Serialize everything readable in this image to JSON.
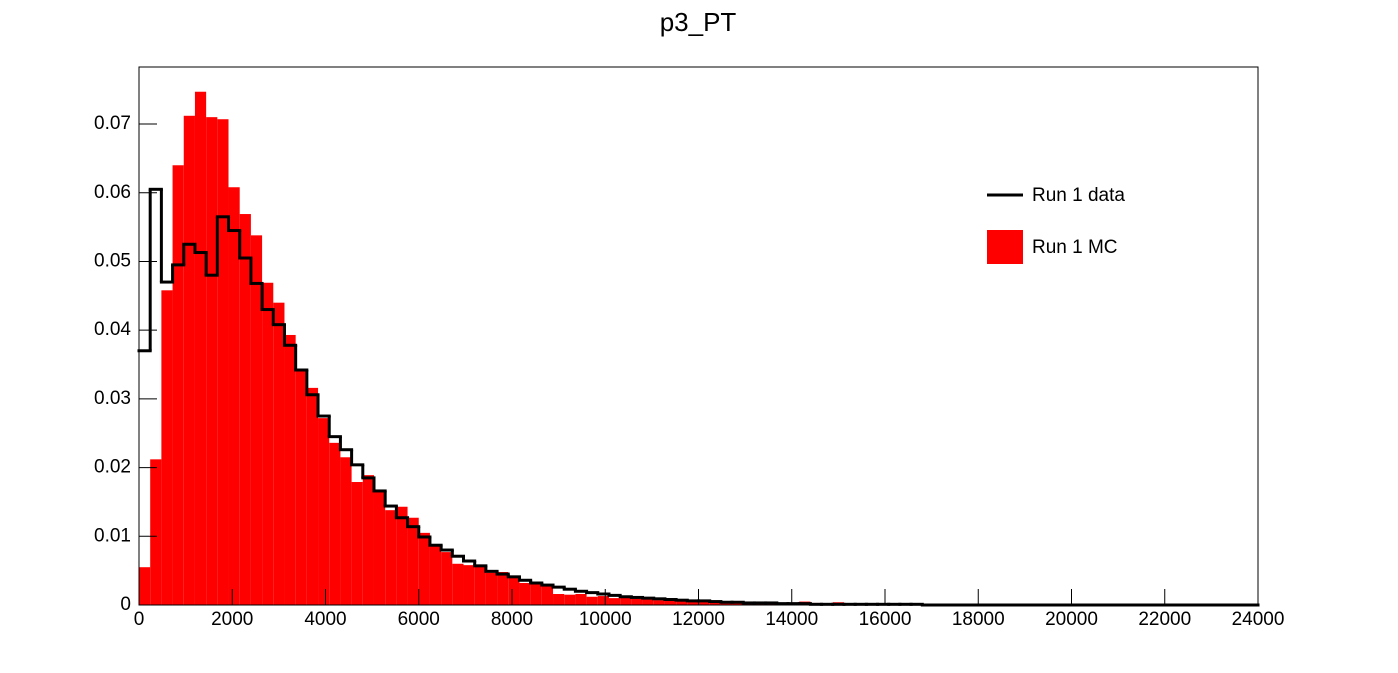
{
  "chart_data": {
    "type": "histogram",
    "title": "p3_PT",
    "bins": [
      0,
      240,
      480,
      720,
      960,
      1200,
      1440,
      1680,
      1920,
      2160,
      2400,
      2640,
      2880,
      3120,
      3360,
      3600,
      3840,
      4080,
      4320,
      4560,
      4800,
      5040,
      5280,
      5520,
      5760,
      6000,
      6240,
      6480,
      6720,
      6960,
      7200,
      7440,
      7680,
      7920,
      8160,
      8400,
      8640,
      8880,
      9120,
      9360,
      9600,
      9840,
      10080,
      10320,
      10560,
      10800,
      11040,
      11280,
      11520,
      11760,
      12000,
      12240,
      12480,
      12720,
      12960,
      13200,
      13440,
      13680,
      13920,
      14160,
      14400,
      14640,
      14880,
      15120,
      15360,
      15600,
      15840,
      16080,
      16320,
      16560,
      16800,
      17040,
      17280,
      17520,
      17760,
      18000,
      18240,
      18480,
      18720,
      18960,
      19200,
      19440,
      19680,
      19920,
      20160,
      20400,
      20640,
      20880,
      21120,
      21360,
      21600,
      21840,
      22080,
      22320,
      22560,
      22800,
      23040,
      23280,
      23520,
      23760,
      24000
    ],
    "series": [
      {
        "name": "Run 1 data",
        "color": "#000000",
        "style": "step",
        "values": [
          0.037,
          0.0605,
          0.047,
          0.0495,
          0.0525,
          0.0513,
          0.048,
          0.0565,
          0.0545,
          0.0505,
          0.0468,
          0.043,
          0.0408,
          0.0378,
          0.0342,
          0.0306,
          0.0275,
          0.0245,
          0.0226,
          0.0204,
          0.0185,
          0.0166,
          0.0144,
          0.0127,
          0.0114,
          0.0099,
          0.0087,
          0.008,
          0.0071,
          0.0064,
          0.0057,
          0.0049,
          0.0045,
          0.0041,
          0.0036,
          0.0032,
          0.0029,
          0.0026,
          0.0023,
          0.002,
          0.0018,
          0.0016,
          0.0014,
          0.0012,
          0.0011,
          0.001,
          0.0009,
          0.0008,
          0.0007,
          0.0006,
          0.0006,
          0.0005,
          0.0004,
          0.0004,
          0.0003,
          0.0003,
          0.0003,
          0.0002,
          0.0002,
          0.0002,
          0.0001,
          0.0001,
          0.0001,
          0.0001,
          0.0001,
          0.0001,
          0.0001,
          0.0001,
          0.0001,
          0.0001,
          0,
          0,
          0,
          0,
          0,
          0,
          0,
          0,
          0,
          0,
          0,
          0,
          0,
          0,
          0,
          0,
          0,
          0,
          0,
          0,
          0,
          0,
          0,
          0,
          0,
          0,
          0,
          0,
          0,
          0
        ]
      },
      {
        "name": "Run 1 MC",
        "color": "#ff0000",
        "style": "filled",
        "values": [
          0.0055,
          0.0212,
          0.0458,
          0.064,
          0.0712,
          0.0747,
          0.071,
          0.0707,
          0.0608,
          0.0569,
          0.0538,
          0.0469,
          0.044,
          0.0393,
          0.0342,
          0.0316,
          0.0272,
          0.0236,
          0.0215,
          0.0179,
          0.0189,
          0.0165,
          0.0138,
          0.0143,
          0.0127,
          0.0105,
          0.0087,
          0.0077,
          0.006,
          0.0058,
          0.0058,
          0.0047,
          0.0048,
          0.0042,
          0.0032,
          0.0032,
          0.0029,
          0.0016,
          0.0015,
          0.0016,
          0.0012,
          0.0013,
          0.001,
          0.0013,
          0.0009,
          0.001,
          0.0007,
          0.0007,
          0.0007,
          0.0005,
          0.0006,
          0.0004,
          0.0004,
          0.0004,
          0.0003,
          0.0003,
          0.0004,
          0.0003,
          0.0002,
          0.0005,
          0.0003,
          0.0002,
          0.0004,
          0.0002,
          0.0001,
          0.0001,
          0.0001,
          0.0001,
          0.0001,
          0.0001,
          0.0001,
          0.0001,
          0.0001,
          0.0001,
          0.0001,
          0,
          0,
          0,
          0,
          0,
          0,
          0,
          0,
          0,
          0,
          0,
          0,
          0,
          0,
          0,
          0,
          0,
          0,
          0,
          0,
          0,
          0,
          0,
          0,
          0
        ]
      }
    ],
    "xlim": [
      0,
      24000
    ],
    "xticks": [
      0,
      2000,
      4000,
      6000,
      8000,
      10000,
      12000,
      14000,
      16000,
      18000,
      20000,
      22000,
      24000
    ],
    "ylim": [
      0,
      0.0783
    ],
    "yticks": [
      0,
      0.01,
      0.02,
      0.03,
      0.04,
      0.05,
      0.06,
      0.07
    ],
    "legend": "top-right"
  }
}
